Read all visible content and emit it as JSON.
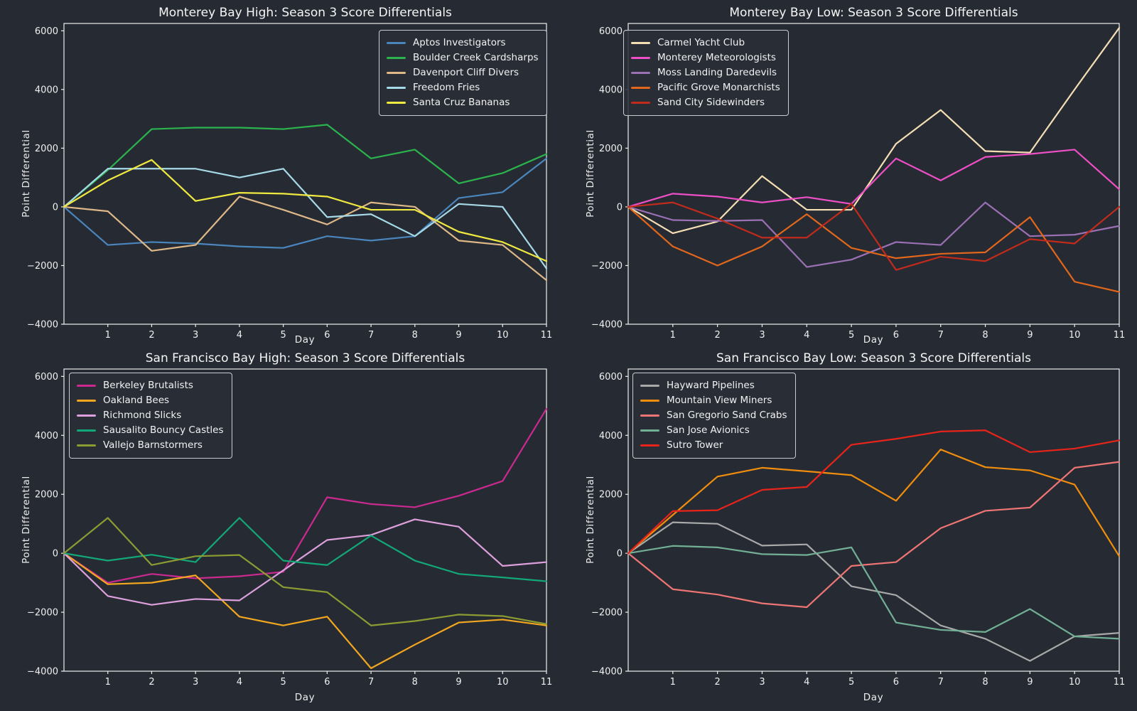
{
  "theme": {
    "background": "#262b33",
    "text_color": "#f2f2f2",
    "spine_color": "#eeeeee",
    "legend_background": "#2a2f38",
    "legend_border": "#c9cbce"
  },
  "chart_data": [
    {
      "type": "line",
      "title": "Monterey Bay High: Season 3 Score Differentials",
      "xlabel": "Day",
      "ylabel": "Point Differential",
      "x": [
        0,
        1,
        2,
        3,
        4,
        5,
        6,
        7,
        8,
        9,
        10,
        11
      ],
      "xticks": [
        1,
        2,
        3,
        4,
        5,
        6,
        7,
        8,
        9,
        10,
        11
      ],
      "yticks": [
        6000,
        4000,
        2000,
        0,
        -2000,
        -4000
      ],
      "xlim": [
        0,
        11
      ],
      "ylim": [
        -4000,
        6250
      ],
      "grid": false,
      "legend_pos": "upper-right",
      "series": [
        {
          "name": "Aptos Investigators",
          "color": "#4a86bd",
          "values": [
            0,
            -1300,
            -1200,
            -1250,
            -1350,
            -1400,
            -1000,
            -1150,
            -1000,
            300,
            500,
            1650
          ]
        },
        {
          "name": "Boulder Creek Cardsharps",
          "color": "#2bb34d",
          "values": [
            0,
            1250,
            2650,
            2700,
            2700,
            2650,
            2800,
            1650,
            1950,
            800,
            1150,
            1800
          ]
        },
        {
          "name": "Davenport Cliff Divers",
          "color": "#deb887",
          "values": [
            0,
            -150,
            -1500,
            -1300,
            350,
            -100,
            -600,
            150,
            0,
            -1150,
            -1300,
            -2500
          ]
        },
        {
          "name": "Freedom Fries",
          "color": "#a6d9e8",
          "values": [
            0,
            1300,
            1300,
            1300,
            1000,
            1300,
            -350,
            -250,
            -1000,
            100,
            0,
            -2100
          ]
        },
        {
          "name": "Santa Cruz Bananas",
          "color": "#f0e93f",
          "values": [
            0,
            900,
            1600,
            200,
            480,
            450,
            350,
            -100,
            -100,
            -850,
            -1200,
            -1850
          ]
        }
      ]
    },
    {
      "type": "line",
      "title": "Monterey Bay Low: Season 3 Score Differentials",
      "xlabel": "Day",
      "ylabel": "Point Differential",
      "x": [
        0,
        1,
        2,
        3,
        4,
        5,
        6,
        7,
        8,
        9,
        10,
        11
      ],
      "xticks": [
        1,
        2,
        3,
        4,
        5,
        6,
        7,
        8,
        9,
        10,
        11
      ],
      "yticks": [
        6000,
        4000,
        2000,
        0,
        -2000,
        -4000
      ],
      "xlim": [
        0,
        11
      ],
      "ylim": [
        -4000,
        6250
      ],
      "grid": false,
      "legend_pos": "upper-left",
      "series": [
        {
          "name": "Carmel Yacht Club",
          "color": "#f5deb3",
          "values": [
            0,
            -900,
            -500,
            1050,
            -100,
            -100,
            2150,
            3300,
            1900,
            1850,
            4000,
            6100
          ]
        },
        {
          "name": "Monterey Meteorologists",
          "color": "#ee4fc6",
          "values": [
            0,
            450,
            350,
            150,
            330,
            100,
            1650,
            900,
            1700,
            1800,
            1950,
            600
          ]
        },
        {
          "name": "Moss Landing Daredevils",
          "color": "#9b70b4",
          "values": [
            0,
            -450,
            -480,
            -450,
            -2050,
            -1800,
            -1200,
            -1300,
            150,
            -1000,
            -950,
            -650
          ]
        },
        {
          "name": "Pacific Grove Monarchists",
          "color": "#e2671c",
          "values": [
            0,
            -1350,
            -2000,
            -1350,
            -250,
            -1400,
            -1750,
            -1600,
            -1550,
            -350,
            -2550,
            -2900
          ]
        },
        {
          "name": "Sand City Sidewinders",
          "color": "#c22b1c",
          "values": [
            0,
            150,
            -400,
            -1050,
            -1050,
            100,
            -2150,
            -1700,
            -1850,
            -1100,
            -1250,
            0
          ]
        }
      ]
    },
    {
      "type": "line",
      "title": "San Francisco Bay High: Season 3 Score Differentials",
      "xlabel": "Day",
      "ylabel": "Point Differential",
      "x": [
        0,
        1,
        2,
        3,
        4,
        5,
        6,
        7,
        8,
        9,
        10,
        11
      ],
      "xticks": [
        1,
        2,
        3,
        4,
        5,
        6,
        7,
        8,
        9,
        10,
        11
      ],
      "yticks": [
        6000,
        4000,
        2000,
        0,
        -2000,
        -4000
      ],
      "xlim": [
        0,
        11
      ],
      "ylim": [
        -4000,
        6250
      ],
      "grid": false,
      "legend_pos": "upper-left",
      "series": [
        {
          "name": "Berkeley Brutalists",
          "color": "#cb2990",
          "values": [
            0,
            -1000,
            -700,
            -850,
            -780,
            -630,
            1900,
            1670,
            1560,
            1950,
            2450,
            4900
          ]
        },
        {
          "name": "Oakland Bees",
          "color": "#f2a71f",
          "values": [
            0,
            -1050,
            -1000,
            -750,
            -2150,
            -2450,
            -2150,
            -3900,
            -3100,
            -2350,
            -2250,
            -2450
          ]
        },
        {
          "name": "Richmond Slicks",
          "color": "#dda0dd",
          "values": [
            0,
            -1450,
            -1750,
            -1550,
            -1600,
            -580,
            450,
            620,
            1150,
            900,
            -430,
            -300
          ]
        },
        {
          "name": "Sausalito Bouncy Castles",
          "color": "#13a878",
          "values": [
            0,
            -250,
            -50,
            -300,
            1200,
            -250,
            -400,
            600,
            -250,
            -700,
            -820,
            -950
          ]
        },
        {
          "name": "Vallejo Barnstormers",
          "color": "#8c9c33",
          "values": [
            0,
            1200,
            -400,
            -100,
            -60,
            -1150,
            -1320,
            -2450,
            -2300,
            -2080,
            -2130,
            -2400
          ]
        }
      ]
    },
    {
      "type": "line",
      "title": "San Francisco Bay Low: Season 3 Score Differentials",
      "xlabel": "Day",
      "ylabel": "Point Differential",
      "x": [
        0,
        1,
        2,
        3,
        4,
        5,
        6,
        7,
        8,
        9,
        10,
        11
      ],
      "xticks": [
        1,
        2,
        3,
        4,
        5,
        6,
        7,
        8,
        9,
        10,
        11
      ],
      "yticks": [
        6000,
        4000,
        2000,
        0,
        -2000,
        -4000
      ],
      "xlim": [
        0,
        11
      ],
      "ylim": [
        -4000,
        6250
      ],
      "grid": false,
      "legend_pos": "upper-left",
      "series": [
        {
          "name": "Hayward Pipelines",
          "color": "#a9a9a9",
          "values": [
            0,
            1050,
            1000,
            260,
            300,
            -1120,
            -1420,
            -2450,
            -2900,
            -3650,
            -2820,
            -2700
          ]
        },
        {
          "name": "Mountain View Miners",
          "color": "#f08d0c",
          "values": [
            0,
            1300,
            2600,
            2900,
            2780,
            2650,
            1780,
            3520,
            2920,
            2810,
            2330,
            -100
          ]
        },
        {
          "name": "San Gregorio Sand Crabs",
          "color": "#ee7573",
          "values": [
            0,
            -1220,
            -1400,
            -1700,
            -1830,
            -430,
            -300,
            850,
            1440,
            1550,
            2900,
            3100
          ]
        },
        {
          "name": "San Jose Avionics",
          "color": "#72b096",
          "values": [
            0,
            250,
            200,
            -30,
            -60,
            200,
            -2350,
            -2600,
            -2670,
            -1890,
            -2820,
            -2900
          ]
        },
        {
          "name": "Sutro Tower",
          "color": "#e8241a",
          "values": [
            0,
            1430,
            1460,
            2150,
            2250,
            3680,
            3880,
            4130,
            4170,
            3430,
            3550,
            3830
          ]
        }
      ]
    }
  ]
}
